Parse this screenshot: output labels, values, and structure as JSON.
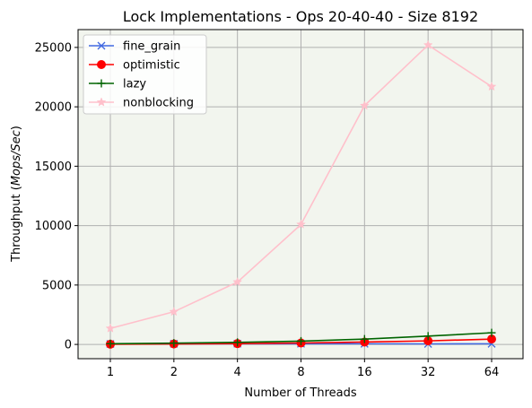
{
  "chart_data": {
    "type": "line",
    "title": "Lock Implementations - Ops 20-40-40 - Size 8192",
    "xlabel": "Number of Threads",
    "ylabel_prefix": "Throughput (",
    "ylabel_italic": "Mops/Sec",
    "ylabel_suffix": ")",
    "categories": [
      "1",
      "2",
      "4",
      "8",
      "16",
      "32",
      "64"
    ],
    "yticks": [
      0,
      5000,
      10000,
      15000,
      20000,
      25000
    ],
    "ylim": [
      -1200,
      26500
    ],
    "grid": true,
    "legend_position": "top-left",
    "background": "#f2f5ee",
    "series": [
      {
        "name": "fine_grain",
        "color": "#4169e1",
        "marker": "x",
        "values": [
          40,
          55,
          60,
          60,
          55,
          45,
          55
        ]
      },
      {
        "name": "optimistic",
        "color": "#ff0000",
        "marker": "o",
        "values": [
          20,
          40,
          70,
          120,
          200,
          300,
          450
        ]
      },
      {
        "name": "lazy",
        "color": "#006400",
        "marker": "+",
        "values": [
          60,
          110,
          170,
          280,
          450,
          700,
          980
        ]
      },
      {
        "name": "nonblocking",
        "color": "#ffc0cb",
        "marker": "*",
        "values": [
          1350,
          2750,
          5250,
          10100,
          20100,
          25200,
          21700
        ]
      }
    ]
  }
}
